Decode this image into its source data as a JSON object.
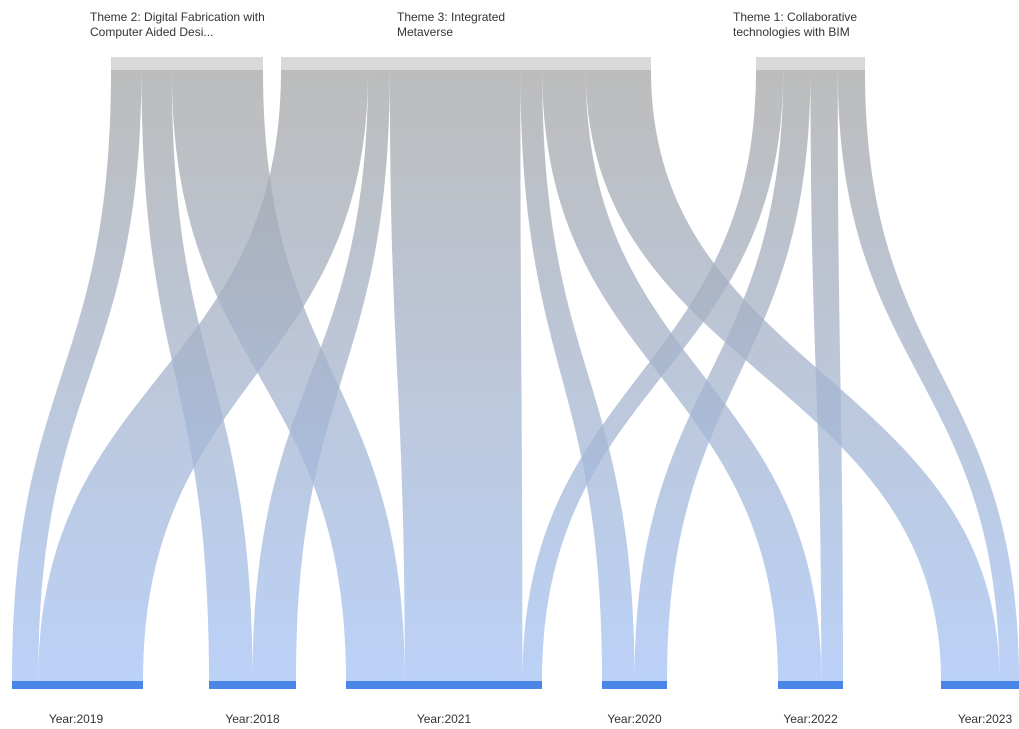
{
  "chart_data": {
    "type": "sankey",
    "sources": [
      {
        "id": "t2",
        "label": "Theme 2: Digital Fabrication with Computer Aided Desi..."
      },
      {
        "id": "t3",
        "label": "Theme 3: Integrated Metaverse"
      },
      {
        "id": "t1",
        "label": "Theme 1: Collaborative technologies with BIM"
      }
    ],
    "targets": [
      {
        "id": "y2019",
        "label": "Year:2019"
      },
      {
        "id": "y2018",
        "label": "Year:2018"
      },
      {
        "id": "y2021",
        "label": "Year:2021"
      },
      {
        "id": "y2020",
        "label": "Year:2020"
      },
      {
        "id": "y2022",
        "label": "Year:2022"
      },
      {
        "id": "y2023",
        "label": "Year:2023"
      }
    ],
    "links": [
      {
        "source": "t2",
        "target": "y2019",
        "value": 1
      },
      {
        "source": "t2",
        "target": "y2021",
        "value": 3
      },
      {
        "source": "t2",
        "target": "y2018",
        "value": 1
      },
      {
        "source": "t3",
        "target": "y2019",
        "value": 4
      },
      {
        "source": "t3",
        "target": "y2018",
        "value": 1
      },
      {
        "source": "t3",
        "target": "y2021",
        "value": 6
      },
      {
        "source": "t3",
        "target": "y2020",
        "value": 1
      },
      {
        "source": "t3",
        "target": "y2022",
        "value": 2
      },
      {
        "source": "t3",
        "target": "y2023",
        "value": 3
      },
      {
        "source": "t1",
        "target": "y2020",
        "value": 1
      },
      {
        "source": "t1",
        "target": "y2022",
        "value": 1
      },
      {
        "source": "t1",
        "target": "y2021",
        "value": 1
      },
      {
        "source": "t1",
        "target": "y2023",
        "value": 1
      }
    ],
    "colors": {
      "source_bar": "#d9d9d9",
      "target_bar": "#4a86e8",
      "link_top": "#a6a6a6",
      "link_bottom": "#a4c2f4"
    }
  }
}
